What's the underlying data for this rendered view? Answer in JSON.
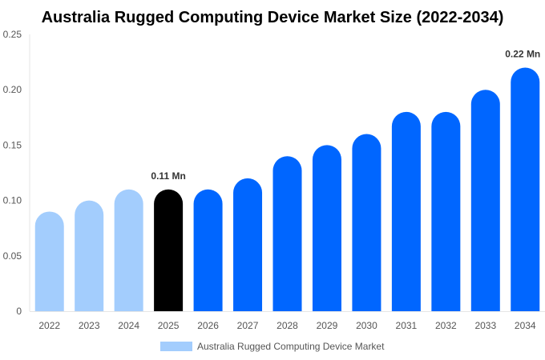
{
  "chart_data": {
    "type": "bar",
    "title": "Australia Rugged Computing Device Market Size (2022-2034)",
    "xlabel": "",
    "ylabel": "",
    "categories": [
      "2022",
      "2023",
      "2024",
      "2025",
      "2026",
      "2027",
      "2028",
      "2029",
      "2030",
      "2031",
      "2032",
      "2033",
      "2034"
    ],
    "series": [
      {
        "name": "Australia Rugged Computing Device Market",
        "values": [
          0.09,
          0.1,
          0.11,
          0.11,
          0.11,
          0.12,
          0.14,
          0.15,
          0.16,
          0.18,
          0.18,
          0.2,
          0.22
        ]
      }
    ],
    "ylim": [
      0,
      0.25
    ],
    "yticks": [
      "0",
      "0.05",
      "0.10",
      "0.15",
      "0.20",
      "0.25"
    ],
    "data_labels": [
      {
        "category": "2025",
        "text": "0.11 Mn"
      },
      {
        "category": "2034",
        "text": "0.22 Mn"
      }
    ],
    "bar_colors": [
      "#a3cdfd",
      "#a3cdfd",
      "#a3cdfd",
      "#000000",
      "#0066ff",
      "#0066ff",
      "#0066ff",
      "#0066ff",
      "#0066ff",
      "#0066ff",
      "#0066ff",
      "#0066ff",
      "#0066ff"
    ],
    "legend_color": "#a3cdfd",
    "legend_position": "bottom",
    "grid": false
  }
}
